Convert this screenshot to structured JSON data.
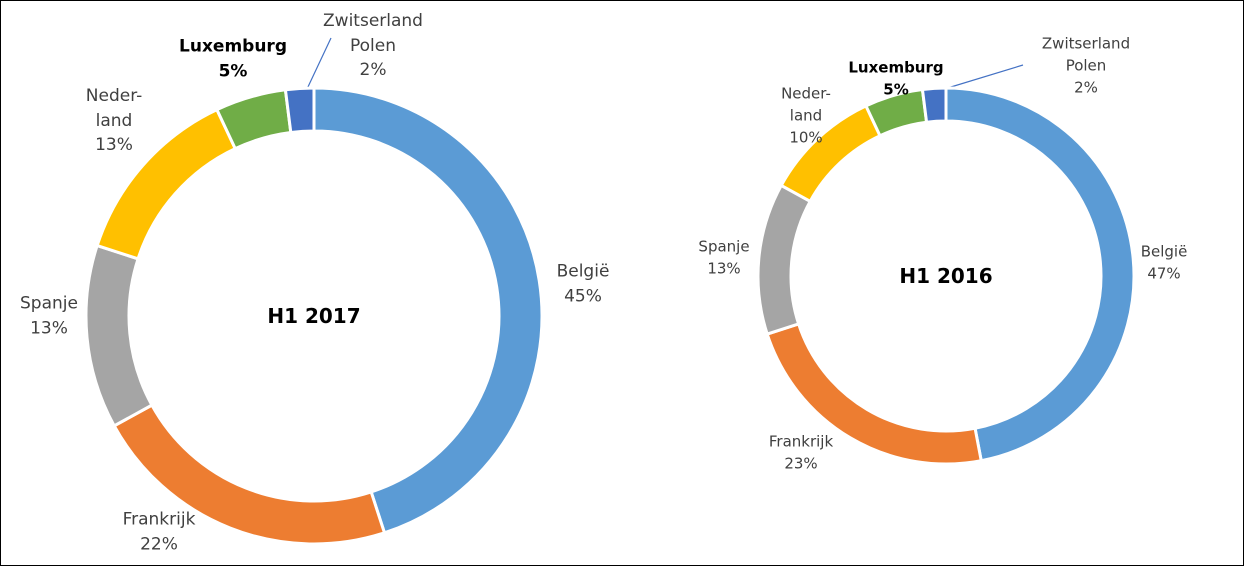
{
  "chart_data": [
    {
      "type": "donut",
      "title": "H1 2017",
      "categories": [
        "België",
        "Frankrijk",
        "Spanje",
        "Neder-\nland",
        "Luxemburg",
        "Zwitserland\nPolen"
      ],
      "values": [
        45,
        22,
        13,
        13,
        5,
        2
      ],
      "value_labels": [
        "45%",
        "22%",
        "13%",
        "13%",
        "5%",
        "2%"
      ],
      "colors": [
        "#5b9bd5",
        "#ed7d31",
        "#a5a5a5",
        "#ffc000",
        "#70ad47",
        "#4472c4"
      ]
    },
    {
      "type": "donut",
      "title": "H1 2016",
      "categories": [
        "België",
        "Frankrijk",
        "Spanje",
        "Neder-\nland",
        "Luxemburg",
        "Zwitserland\nPolen"
      ],
      "values": [
        47,
        23,
        13,
        10,
        5,
        2
      ],
      "value_labels": [
        "47%",
        "23%",
        "13%",
        "10%",
        "5%",
        "2%"
      ],
      "colors": [
        "#5b9bd5",
        "#ed7d31",
        "#a5a5a5",
        "#ffc000",
        "#70ad47",
        "#4472c4"
      ]
    }
  ]
}
